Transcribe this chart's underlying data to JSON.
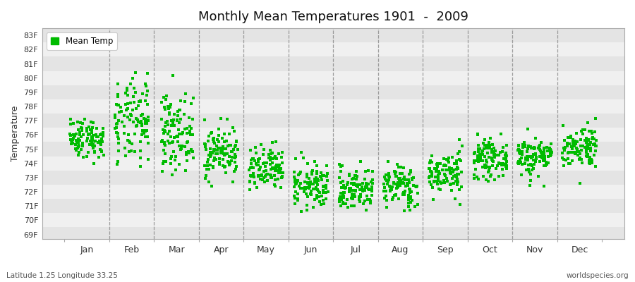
{
  "title": "Monthly Mean Temperatures 1901  -  2009",
  "ylabel": "Temperature",
  "xlabel_months": [
    "Jan",
    "Feb",
    "Mar",
    "Apr",
    "May",
    "Jun",
    "Jul",
    "Aug",
    "Sep",
    "Oct",
    "Nov",
    "Dec"
  ],
  "ytick_labels": [
    "69F",
    "70F",
    "71F",
    "72F",
    "73F",
    "74F",
    "75F",
    "76F",
    "77F",
    "78F",
    "79F",
    "80F",
    "81F",
    "82F",
    "83F"
  ],
  "ytick_values": [
    69,
    70,
    71,
    72,
    73,
    74,
    75,
    76,
    77,
    78,
    79,
    80,
    81,
    82,
    83
  ],
  "ylim": [
    68.7,
    83.5
  ],
  "xlim": [
    0,
    13
  ],
  "background_color": "#ffffff",
  "plot_bg_light": "#f0f0f0",
  "plot_bg_dark": "#e4e4e4",
  "marker_color": "#00bb00",
  "attribution": "worldspecies.org",
  "lat_lon_label": "Latitude 1.25 Longitude 33.25",
  "legend_label": "Mean Temp",
  "num_years": 109,
  "seed": 42,
  "monthly_means": [
    75.8,
    76.8,
    76.2,
    74.8,
    73.5,
    72.4,
    72.2,
    72.4,
    73.3,
    74.3,
    74.5,
    75.2
  ],
  "monthly_stds": [
    0.7,
    1.5,
    1.3,
    0.9,
    0.8,
    0.8,
    0.75,
    0.75,
    0.75,
    0.65,
    0.7,
    0.75
  ]
}
